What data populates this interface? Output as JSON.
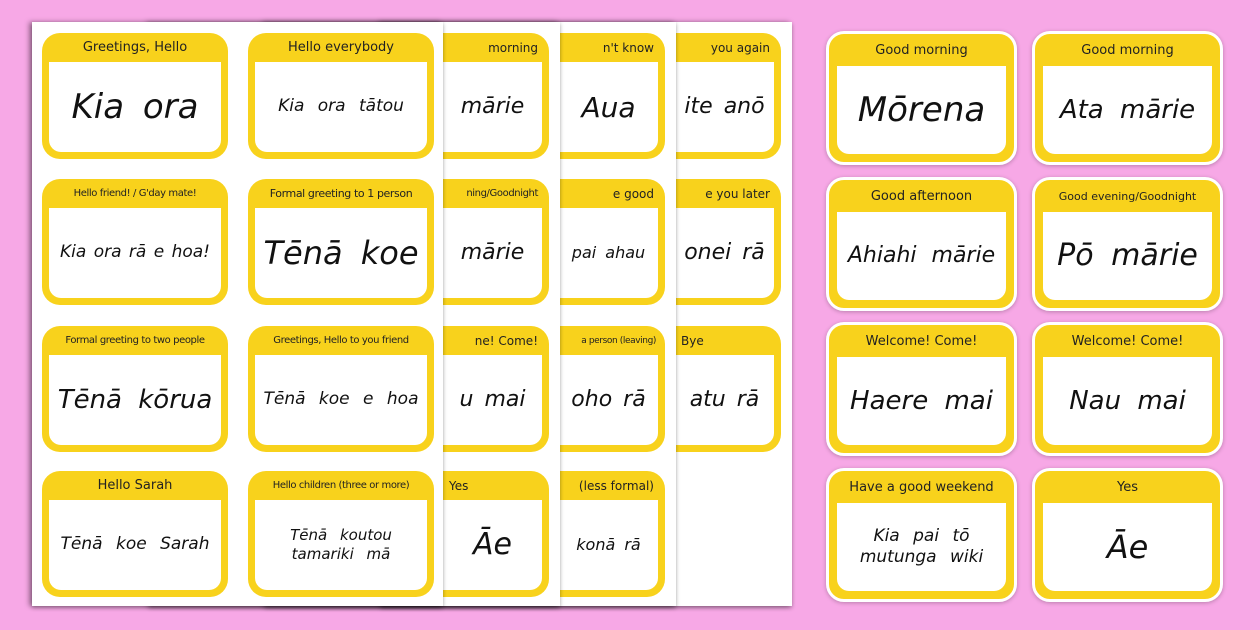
{
  "colors": {
    "background": "#f7a8e6",
    "card": "#f8d21c",
    "page": "#ffffff"
  },
  "back_pages": [
    {
      "cards": [
        {
          "header": "you again",
          "text": "ite anō"
        },
        {
          "header": "e you later",
          "text": "onei rā"
        },
        {
          "header": "Bye",
          "text": "atu rā"
        }
      ]
    },
    {
      "cards": [
        {
          "header": "n't know",
          "text": "Aua"
        },
        {
          "header": "e good",
          "text": "pai ahau"
        },
        {
          "header": "a person (leaving)",
          "text": "oho rā"
        },
        {
          "header": "(less formal)",
          "text": "konā rā"
        }
      ]
    },
    {
      "cards": [
        {
          "header": "morning",
          "text": "mārie"
        },
        {
          "header": "ning/Goodnight",
          "text": "mārie"
        },
        {
          "header": "ne! Come!",
          "text": "u mai"
        },
        {
          "header": "Yes",
          "text": "Āe"
        }
      ]
    }
  ],
  "front_page": {
    "cards": [
      {
        "header": "Greetings, Hello",
        "text": "Kia ora"
      },
      {
        "header": "Hello everybody",
        "text": "Kia ora tātou"
      },
      {
        "header": "Hello friend! / G'day mate!",
        "text": "Kia ora rā e hoa!"
      },
      {
        "header": "Formal greeting to 1 person",
        "text": "Tēnā koe"
      },
      {
        "header": "Formal greeting to two people",
        "text": "Tēnā kōrua"
      },
      {
        "header": "Greetings, Hello to you friend",
        "text": "Tēnā koe e hoa"
      },
      {
        "header": "Hello Sarah",
        "text": "Tēnā koe Sarah"
      },
      {
        "header": "Hello children (three or more)",
        "text": "Tēnā koutou tamariki mā"
      }
    ]
  },
  "side_cards": [
    {
      "header": "Good morning",
      "text": "Mōrena"
    },
    {
      "header": "Good morning",
      "text": "Ata mārie"
    },
    {
      "header": "Good afternoon",
      "text": "Ahiahi mārie"
    },
    {
      "header": "Good evening/Goodnight",
      "text": "Pō mārie"
    },
    {
      "header": "Welcome! Come!",
      "text": "Haere mai"
    },
    {
      "header": "Welcome! Come!",
      "text": "Nau mai"
    },
    {
      "header": "Have a good weekend",
      "text": "Kia pai tō mutunga wiki"
    },
    {
      "header": "Yes",
      "text": "Āe"
    }
  ]
}
